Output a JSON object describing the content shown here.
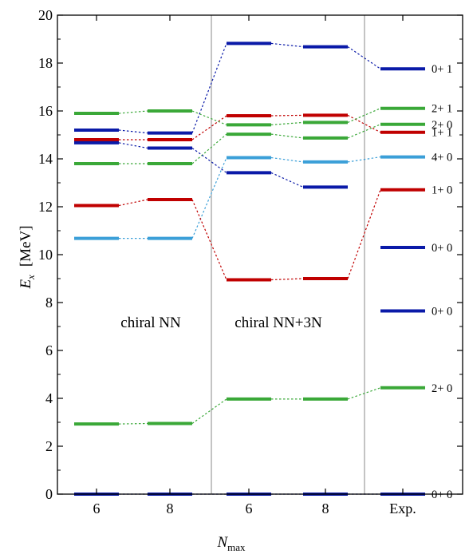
{
  "chart_data": {
    "type": "level-scheme",
    "ylabel_symbol": "E",
    "ylabel_sub": "x",
    "ylabel_unit": "[MeV]",
    "xlabel_symbol": "N",
    "xlabel_sub": "max",
    "ylim": [
      0,
      20
    ],
    "yticks": [
      0,
      2,
      4,
      6,
      8,
      10,
      12,
      14,
      16,
      18,
      20
    ],
    "columns": [
      {
        "label": "6",
        "group": "chiral NN"
      },
      {
        "label": "8",
        "group": "chiral NN"
      },
      {
        "label": "6",
        "group": "chiral NN+3N"
      },
      {
        "label": "8",
        "group": "chiral NN+3N"
      },
      {
        "label": "Exp.",
        "group": "experiment"
      }
    ],
    "annotations": [
      "chiral NN",
      "chiral NN+3N"
    ],
    "colors": {
      "J0T0": "#0a1aa8",
      "J1T0": "#c00000",
      "J2T0": "#3aa838",
      "J4T0": "#3b9fd8",
      "J0T1": "#0a1aa8",
      "J1T1": "#c00000",
      "J2T1": "#3aa838",
      "axis": "#000000",
      "separator": "#888888"
    },
    "levels": [
      {
        "label": "0+ 0",
        "color_key": "J0T0",
        "values": [
          0.0,
          0.0,
          0.0,
          0.0,
          0.0
        ],
        "link": "all"
      },
      {
        "label": "2+ 0",
        "color_key": "J2T0",
        "values": [
          2.93,
          2.95,
          3.97,
          3.97,
          4.44
        ],
        "link": "all"
      },
      {
        "label": "0+ 0",
        "color_key": "J0T0",
        "values": [
          null,
          null,
          null,
          null,
          7.65
        ],
        "link": "none"
      },
      {
        "label": "0+ 0",
        "color_key": "J0T0",
        "values": [
          null,
          null,
          null,
          null,
          10.3
        ],
        "link": "none"
      },
      {
        "label": "4+ 0",
        "color_key": "J4T0",
        "values": [
          10.68,
          10.68,
          14.05,
          13.87,
          14.08
        ],
        "link": "all"
      },
      {
        "label": "1+ 0",
        "color_key": "J1T0",
        "values": [
          12.05,
          12.3,
          8.95,
          9.0,
          12.71
        ],
        "link": "all"
      },
      {
        "label": "2+ 0",
        "color_key": "J2T0",
        "values": [
          13.8,
          13.8,
          15.03,
          14.87,
          15.44
        ],
        "link": "all"
      },
      {
        "label": "1+ 1",
        "color_key": "J1T1",
        "values": [
          14.8,
          14.8,
          15.8,
          15.82,
          15.11
        ],
        "link": "all"
      },
      {
        "label": "2+ 1",
        "color_key": "J2T1",
        "values": [
          15.9,
          16.0,
          15.42,
          15.52,
          16.11
        ],
        "link": "all"
      },
      {
        "label": "0+ 1",
        "color_key": "J0T1",
        "values": [
          15.2,
          15.08,
          18.82,
          18.68,
          17.76
        ],
        "link": "all"
      },
      {
        "label": "",
        "color_key": "J0T0",
        "values": [
          14.67,
          14.45,
          13.42,
          12.82,
          null
        ],
        "link": "all"
      }
    ]
  }
}
